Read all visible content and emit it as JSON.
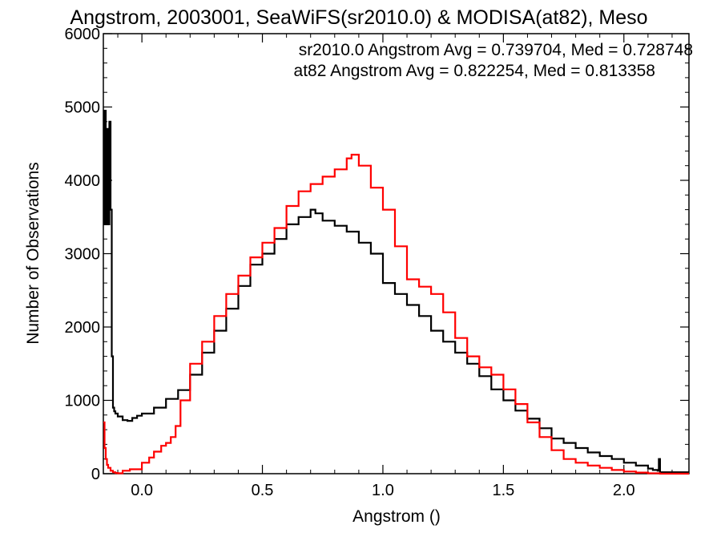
{
  "chart_data": {
    "type": "line",
    "title": "Angstrom, 2003001, SeaWiFS(sr2010.0) & MODISA(at82), Meso",
    "xlabel": "Angstrom ()",
    "ylabel": "Number of Observations",
    "xlim": [
      -0.16,
      2.27
    ],
    "ylim": [
      0,
      6000
    ],
    "xticks": [
      0.0,
      0.5,
      1.0,
      1.5,
      2.0
    ],
    "xtick_labels": [
      "0.0",
      "0.5",
      "1.0",
      "1.5",
      "2.0"
    ],
    "yticks": [
      0,
      1000,
      2000,
      3000,
      4000,
      5000,
      6000
    ],
    "ytick_labels": [
      "0",
      "1000",
      "2000",
      "3000",
      "4000",
      "5000",
      "6000"
    ],
    "step": true,
    "grid": false,
    "legend_placement": "top-right",
    "series": [
      {
        "name": "sr2010.0 Angstrom Avg = 0.739704, Med = 0.728748",
        "color": "#000000",
        "x": [
          -0.16,
          -0.155,
          -0.15,
          -0.145,
          -0.14,
          -0.135,
          -0.13,
          -0.125,
          -0.12,
          -0.115,
          -0.11,
          -0.1,
          -0.08,
          -0.06,
          -0.04,
          -0.02,
          0.0,
          0.05,
          0.1,
          0.15,
          0.2,
          0.25,
          0.3,
          0.35,
          0.4,
          0.45,
          0.5,
          0.55,
          0.6,
          0.65,
          0.7,
          0.72,
          0.75,
          0.8,
          0.85,
          0.9,
          0.95,
          1.0,
          1.05,
          1.1,
          1.15,
          1.2,
          1.25,
          1.3,
          1.35,
          1.4,
          1.45,
          1.5,
          1.55,
          1.6,
          1.65,
          1.7,
          1.75,
          1.8,
          1.85,
          1.9,
          1.95,
          2.0,
          2.05,
          2.1,
          2.12,
          2.14,
          2.145,
          2.15
        ],
        "values": [
          3400,
          4950,
          3400,
          4700,
          3400,
          4800,
          3600,
          1600,
          900,
          850,
          820,
          780,
          730,
          720,
          760,
          790,
          820,
          900,
          1020,
          1140,
          1350,
          1650,
          1950,
          2250,
          2560,
          2850,
          3000,
          3200,
          3400,
          3500,
          3600,
          3550,
          3450,
          3380,
          3300,
          3150,
          3000,
          2600,
          2450,
          2300,
          2150,
          1950,
          1800,
          1650,
          1500,
          1330,
          1150,
          1000,
          860,
          750,
          620,
          480,
          420,
          350,
          290,
          240,
          200,
          150,
          110,
          70,
          50,
          40,
          200,
          20
        ]
      },
      {
        "name": "at82 Angstrom Avg = 0.822254, Med = 0.813358",
        "color": "#ff0000",
        "x": [
          -0.16,
          -0.155,
          -0.15,
          -0.145,
          -0.14,
          -0.13,
          -0.12,
          -0.11,
          -0.1,
          -0.08,
          -0.05,
          0.0,
          0.03,
          0.05,
          0.08,
          0.1,
          0.12,
          0.14,
          0.16,
          0.2,
          0.25,
          0.3,
          0.35,
          0.4,
          0.45,
          0.5,
          0.55,
          0.6,
          0.65,
          0.7,
          0.75,
          0.8,
          0.85,
          0.87,
          0.9,
          0.95,
          1.0,
          1.05,
          1.1,
          1.15,
          1.2,
          1.25,
          1.3,
          1.35,
          1.4,
          1.45,
          1.5,
          1.55,
          1.6,
          1.65,
          1.7,
          1.75,
          1.8,
          1.85,
          1.9,
          1.95,
          2.0,
          2.05,
          2.1,
          2.15,
          2.2,
          2.25
        ],
        "values": [
          700,
          350,
          200,
          120,
          80,
          40,
          20,
          10,
          5,
          40,
          60,
          150,
          220,
          300,
          380,
          420,
          500,
          650,
          1000,
          1500,
          1800,
          2150,
          2450,
          2700,
          2950,
          3150,
          3350,
          3650,
          3850,
          3950,
          4050,
          4150,
          4300,
          4350,
          4200,
          3900,
          3600,
          3100,
          2650,
          2550,
          2450,
          2200,
          1850,
          1600,
          1450,
          1350,
          1150,
          950,
          700,
          500,
          320,
          200,
          150,
          110,
          80,
          50,
          30,
          15,
          5,
          0,
          0,
          0
        ]
      }
    ]
  }
}
